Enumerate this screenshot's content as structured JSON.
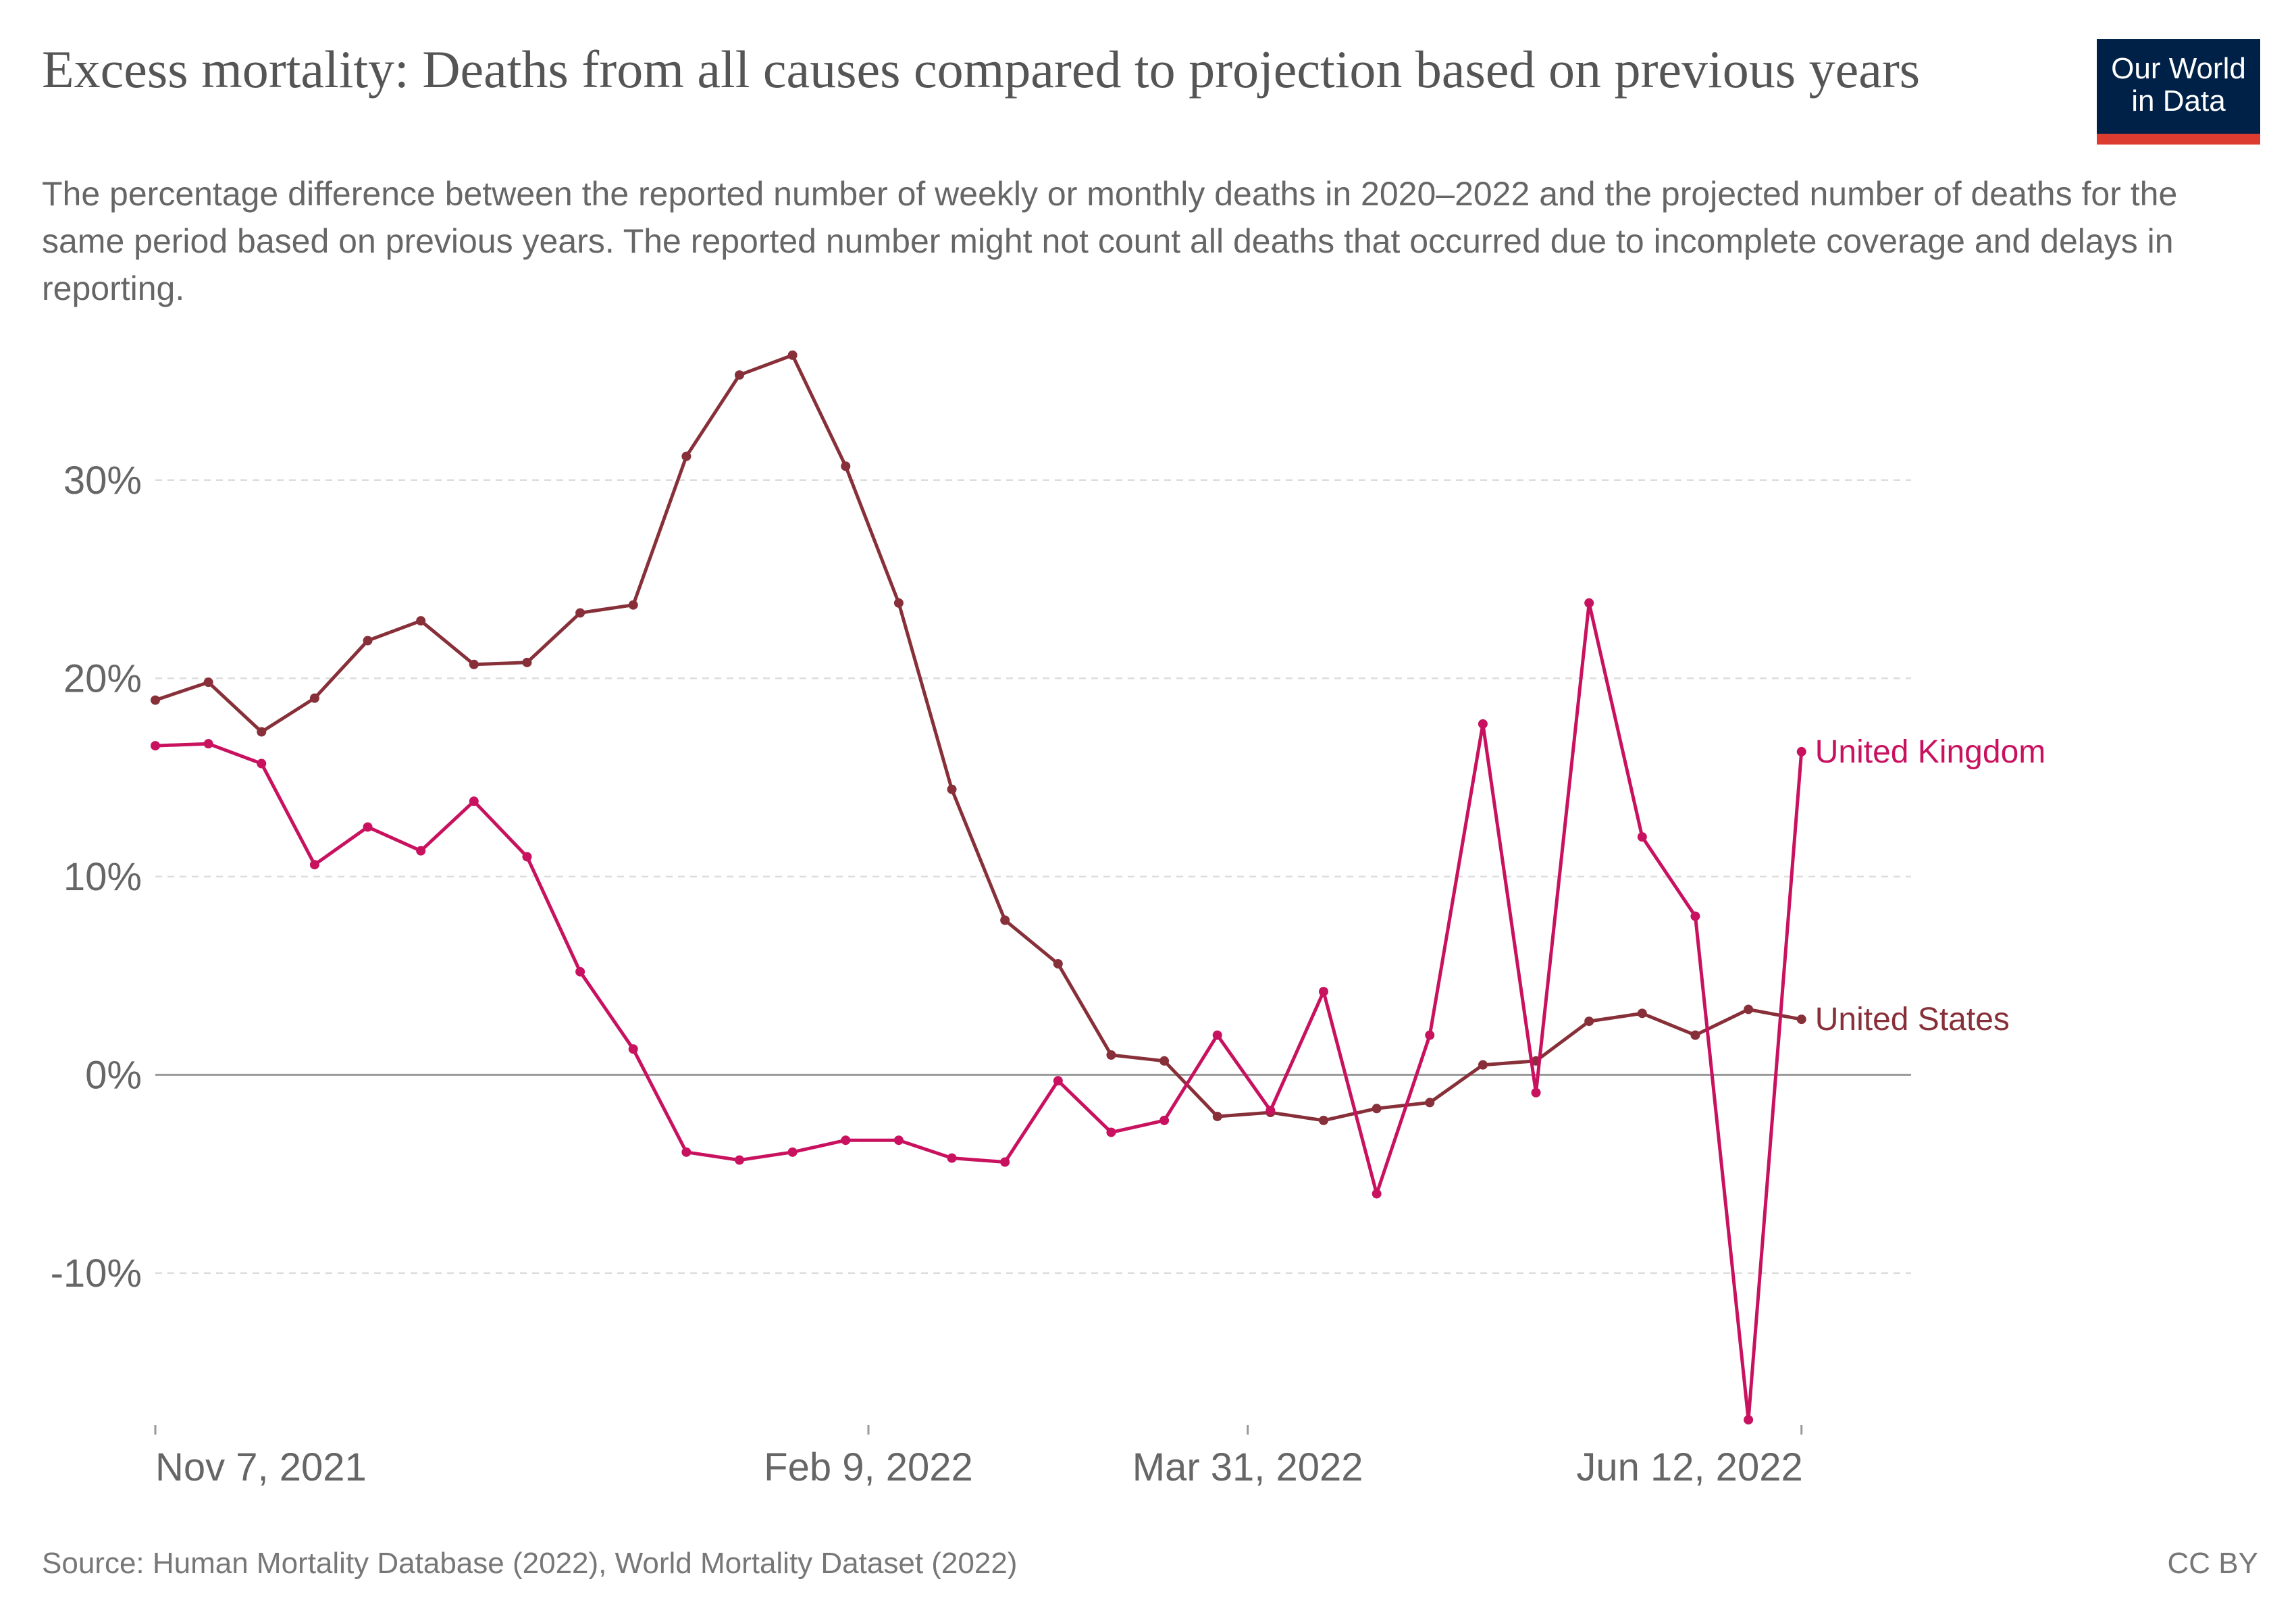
{
  "header": {
    "title": "Excess mortality: Deaths from all causes compared to projection based on previous years",
    "subtitle": "The percentage difference between the reported number of weekly or monthly deaths in 2020–2022 and the projected number of deaths for the same period based on previous years. The reported number might not count all deaths that occurred due to incomplete coverage and delays in reporting.",
    "logo_line1": "Our World",
    "logo_line2": "in Data"
  },
  "footer": {
    "source": "Source: Human Mortality Database (2022), World Mortality Dataset (2022)",
    "license": "CC BY"
  },
  "colors": {
    "united_kingdom": "#c8125f",
    "united_states": "#883039",
    "grid": "#dddddd",
    "zero_line": "#9a9a9a"
  },
  "chart_data": {
    "type": "line",
    "title": "Excess mortality: Deaths from all causes compared to projection based on previous years",
    "xlabel": "",
    "ylabel": "",
    "x_start": "2021-11-07",
    "x_end": "2022-06-26",
    "x_ticks": [
      {
        "date": "2021-11-07",
        "label": "Nov 7, 2021"
      },
      {
        "date": "2022-02-09",
        "label": "Feb 9, 2022"
      },
      {
        "date": "2022-03-31",
        "label": "Mar 31, 2022"
      },
      {
        "date": "2022-06-12",
        "label": "Jun 12, 2022"
      }
    ],
    "y_ticks": [
      {
        "value": 30,
        "label": "30%"
      },
      {
        "value": 20,
        "label": "20%"
      },
      {
        "value": 10,
        "label": "10%"
      },
      {
        "value": 0,
        "label": "0%"
      },
      {
        "value": -10,
        "label": "-10%"
      }
    ],
    "ylim": [
      -17.5,
      36.5
    ],
    "grid": true,
    "legend": "end-of-line labels",
    "series": [
      {
        "name": "United States",
        "color": "#883039",
        "points": [
          {
            "x": "2021-11-07",
            "y": 18.9
          },
          {
            "x": "2021-11-14",
            "y": 19.8
          },
          {
            "x": "2021-11-21",
            "y": 17.3
          },
          {
            "x": "2021-11-28",
            "y": 19.0
          },
          {
            "x": "2021-12-05",
            "y": 21.9
          },
          {
            "x": "2021-12-12",
            "y": 22.9
          },
          {
            "x": "2021-12-19",
            "y": 20.7
          },
          {
            "x": "2021-12-26",
            "y": 20.8
          },
          {
            "x": "2022-01-02",
            "y": 23.3
          },
          {
            "x": "2022-01-09",
            "y": 23.7
          },
          {
            "x": "2022-01-16",
            "y": 31.2
          },
          {
            "x": "2022-01-23",
            "y": 35.3
          },
          {
            "x": "2022-01-30",
            "y": 36.3
          },
          {
            "x": "2022-02-06",
            "y": 30.7
          },
          {
            "x": "2022-02-13",
            "y": 23.8
          },
          {
            "x": "2022-02-20",
            "y": 14.4
          },
          {
            "x": "2022-02-27",
            "y": 7.8
          },
          {
            "x": "2022-03-06",
            "y": 5.6
          },
          {
            "x": "2022-03-13",
            "y": 1.0
          },
          {
            "x": "2022-03-20",
            "y": 0.7
          },
          {
            "x": "2022-03-27",
            "y": -2.1
          },
          {
            "x": "2022-04-03",
            "y": -1.9
          },
          {
            "x": "2022-04-10",
            "y": -2.3
          },
          {
            "x": "2022-04-17",
            "y": -1.7
          },
          {
            "x": "2022-04-24",
            "y": -1.4
          },
          {
            "x": "2022-05-01",
            "y": 0.5
          },
          {
            "x": "2022-05-08",
            "y": 0.7
          },
          {
            "x": "2022-05-15",
            "y": 2.7
          },
          {
            "x": "2022-05-22",
            "y": 3.1
          },
          {
            "x": "2022-05-29",
            "y": 2.0
          },
          {
            "x": "2022-06-05",
            "y": 3.3
          },
          {
            "x": "2022-06-12",
            "y": 2.8
          }
        ]
      },
      {
        "name": "United Kingdom",
        "color": "#c8125f",
        "points": [
          {
            "x": "2021-11-07",
            "y": 16.6
          },
          {
            "x": "2021-11-14",
            "y": 16.7
          },
          {
            "x": "2021-11-21",
            "y": 15.7
          },
          {
            "x": "2021-11-28",
            "y": 10.6
          },
          {
            "x": "2021-12-05",
            "y": 12.5
          },
          {
            "x": "2021-12-12",
            "y": 11.3
          },
          {
            "x": "2021-12-19",
            "y": 13.8
          },
          {
            "x": "2021-12-26",
            "y": 11.0
          },
          {
            "x": "2022-01-02",
            "y": 5.2
          },
          {
            "x": "2022-01-09",
            "y": 1.3
          },
          {
            "x": "2022-01-16",
            "y": -3.9
          },
          {
            "x": "2022-01-23",
            "y": -4.3
          },
          {
            "x": "2022-01-30",
            "y": -3.9
          },
          {
            "x": "2022-02-06",
            "y": -3.3
          },
          {
            "x": "2022-02-13",
            "y": -3.3
          },
          {
            "x": "2022-02-20",
            "y": -4.2
          },
          {
            "x": "2022-02-27",
            "y": -4.4
          },
          {
            "x": "2022-03-06",
            "y": -0.3
          },
          {
            "x": "2022-03-13",
            "y": -2.9
          },
          {
            "x": "2022-03-20",
            "y": -2.3
          },
          {
            "x": "2022-03-27",
            "y": 2.0
          },
          {
            "x": "2022-04-03",
            "y": -1.8
          },
          {
            "x": "2022-04-10",
            "y": 4.2
          },
          {
            "x": "2022-04-17",
            "y": -6.0
          },
          {
            "x": "2022-04-24",
            "y": 2.0
          },
          {
            "x": "2022-05-01",
            "y": 17.7
          },
          {
            "x": "2022-05-08",
            "y": -0.9
          },
          {
            "x": "2022-05-15",
            "y": 23.8
          },
          {
            "x": "2022-05-22",
            "y": 12.0
          },
          {
            "x": "2022-05-29",
            "y": 8.0
          },
          {
            "x": "2022-06-05",
            "y": -17.4
          },
          {
            "x": "2022-06-12",
            "y": 16.3
          }
        ]
      }
    ]
  }
}
